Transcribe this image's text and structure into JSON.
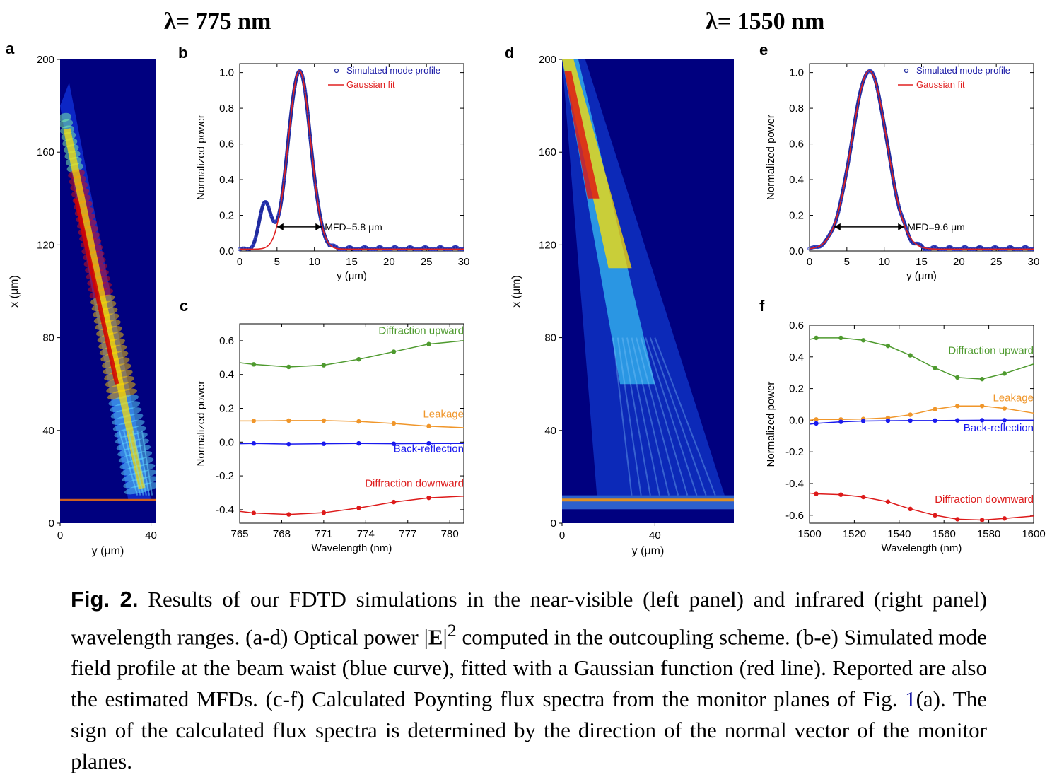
{
  "headings": {
    "left": "λ= 775 nm",
    "right": "λ= 1550 nm"
  },
  "panel_labels": [
    "a",
    "b",
    "c",
    "d",
    "e",
    "f"
  ],
  "caption": {
    "fig_label": "Fig. 2.",
    "part1": "Results of our FDTD simulations in the near-visible (left panel) and infrared (right panel) wavelength ranges. (a-d) Optical power |",
    "bold_E": "E",
    "part2": "|",
    "sup": "2",
    "part3": " computed in the outcoupling scheme. (b-e) Simulated mode field profile at the beam waist (blue curve), fitted with a Gaussian function (red line). Reported are also the estimated MFDs. (c-f) Calculated Poynting flux spectra from the monitor planes of Fig. ",
    "ref": "1",
    "part4": "(a). The sign of the calculated flux spectra is determined by the direction of the normal vector of the monitor planes."
  },
  "colors": {
    "map_bg": "#00007f",
    "sim": "#1f2a9e",
    "fit": "#e02020",
    "green": "#4e9a2e",
    "orange": "#f0962a",
    "blue": "#1a1aee",
    "red": "#dd1a1a"
  },
  "chart_data": [
    {
      "panel": "a",
      "type": "heatmap",
      "xlabel": "y (μm)",
      "ylabel": "x (μm)",
      "xticks": [
        0,
        40
      ],
      "yticks": [
        0,
        40,
        80,
        120,
        160,
        200
      ],
      "xlim": [
        0,
        42
      ],
      "ylim": [
        0,
        200
      ],
      "beam": {
        "start": [
          2,
          175
        ],
        "end": [
          38,
          12
        ]
      }
    },
    {
      "panel": "b",
      "type": "line",
      "xlabel": "y (μm)",
      "ylabel": "Normalized power",
      "xlim": [
        0,
        30
      ],
      "ylim": [
        0,
        1.05
      ],
      "xticks": [
        0,
        5,
        10,
        15,
        20,
        25,
        30
      ],
      "yticks": [
        0.0,
        0.2,
        0.4,
        0.6,
        0.8,
        1.0
      ],
      "legend": [
        "Simulated mode profile",
        "Gaussian fit"
      ],
      "annotation": "MFD=5.8 μm",
      "gauss": {
        "center": 8,
        "sigma": 1.5
      },
      "side_peak": {
        "center": 3.4,
        "amp": 0.26,
        "sigma": 0.75
      }
    },
    {
      "panel": "c",
      "type": "line",
      "xlabel": "Wavelength (nm)",
      "ylabel": "Normalized power",
      "xlim": [
        765,
        781
      ],
      "ylim": [
        -0.48,
        0.7
      ],
      "xticks": [
        765,
        768,
        771,
        774,
        777,
        780
      ],
      "yticks": [
        -0.4,
        -0.2,
        0.0,
        0.2,
        0.4,
        0.6
      ],
      "x": [
        765,
        766,
        768.5,
        771,
        773.5,
        776,
        778.5,
        781
      ],
      "series": [
        {
          "name": "Diffraction upward",
          "values": [
            0.47,
            0.46,
            0.445,
            0.455,
            0.49,
            0.535,
            0.58,
            0.6
          ]
        },
        {
          "name": "Leakage",
          "values": [
            0.125,
            0.125,
            0.127,
            0.127,
            0.122,
            0.11,
            0.094,
            0.085
          ]
        },
        {
          "name": "Back-reflection",
          "values": [
            -0.01,
            -0.008,
            -0.012,
            -0.01,
            -0.008,
            -0.01,
            -0.008,
            -0.008
          ]
        },
        {
          "name": "Diffraction downward",
          "values": [
            -0.41,
            -0.42,
            -0.428,
            -0.418,
            -0.39,
            -0.355,
            -0.33,
            -0.32
          ]
        }
      ]
    },
    {
      "panel": "d",
      "type": "heatmap",
      "xlabel": "y (μm)",
      "ylabel": "x (μm)",
      "xticks": [
        0,
        40
      ],
      "yticks": [
        0,
        40,
        80,
        120,
        160,
        200
      ],
      "xlim": [
        0,
        74
      ],
      "ylim": [
        0,
        200
      ]
    },
    {
      "panel": "e",
      "type": "line",
      "xlabel": "y (μm)",
      "ylabel": "Normalized power",
      "xlim": [
        0,
        30
      ],
      "ylim": [
        0,
        1.05
      ],
      "xticks": [
        0,
        5,
        10,
        15,
        20,
        25,
        30
      ],
      "yticks": [
        0.0,
        0.2,
        0.4,
        0.6,
        0.8,
        1.0
      ],
      "legend": [
        "Simulated mode profile",
        "Gaussian fit"
      ],
      "annotation": "MFD=9.6 μm",
      "gauss": {
        "center": 8,
        "sigma": 2.35
      }
    },
    {
      "panel": "f",
      "type": "line",
      "xlabel": "Wavelength (nm)",
      "ylabel": "Normalized power",
      "xlim": [
        1500,
        1600
      ],
      "ylim": [
        -0.65,
        0.6
      ],
      "xticks": [
        1500,
        1520,
        1540,
        1560,
        1580,
        1600
      ],
      "yticks": [
        -0.6,
        -0.4,
        -0.2,
        0.0,
        0.2,
        0.4,
        0.6
      ],
      "x": [
        1500,
        1503,
        1514,
        1524,
        1535,
        1545,
        1556,
        1566,
        1577,
        1587,
        1600
      ],
      "series": [
        {
          "name": "Diffraction upward",
          "values": [
            0.51,
            0.52,
            0.52,
            0.505,
            0.47,
            0.41,
            0.33,
            0.27,
            0.26,
            0.295,
            0.355
          ]
        },
        {
          "name": "Leakage",
          "values": [
            0.0,
            0.005,
            0.005,
            0.008,
            0.015,
            0.035,
            0.07,
            0.09,
            0.09,
            0.075,
            0.045
          ]
        },
        {
          "name": "Back-reflection",
          "values": [
            -0.025,
            -0.02,
            -0.01,
            -0.005,
            -0.003,
            -0.002,
            -0.002,
            -0.001,
            0.0,
            0.0,
            0.0
          ]
        },
        {
          "name": "Diffraction downward",
          "values": [
            -0.46,
            -0.465,
            -0.47,
            -0.485,
            -0.515,
            -0.56,
            -0.6,
            -0.625,
            -0.63,
            -0.62,
            -0.605
          ]
        }
      ]
    }
  ]
}
